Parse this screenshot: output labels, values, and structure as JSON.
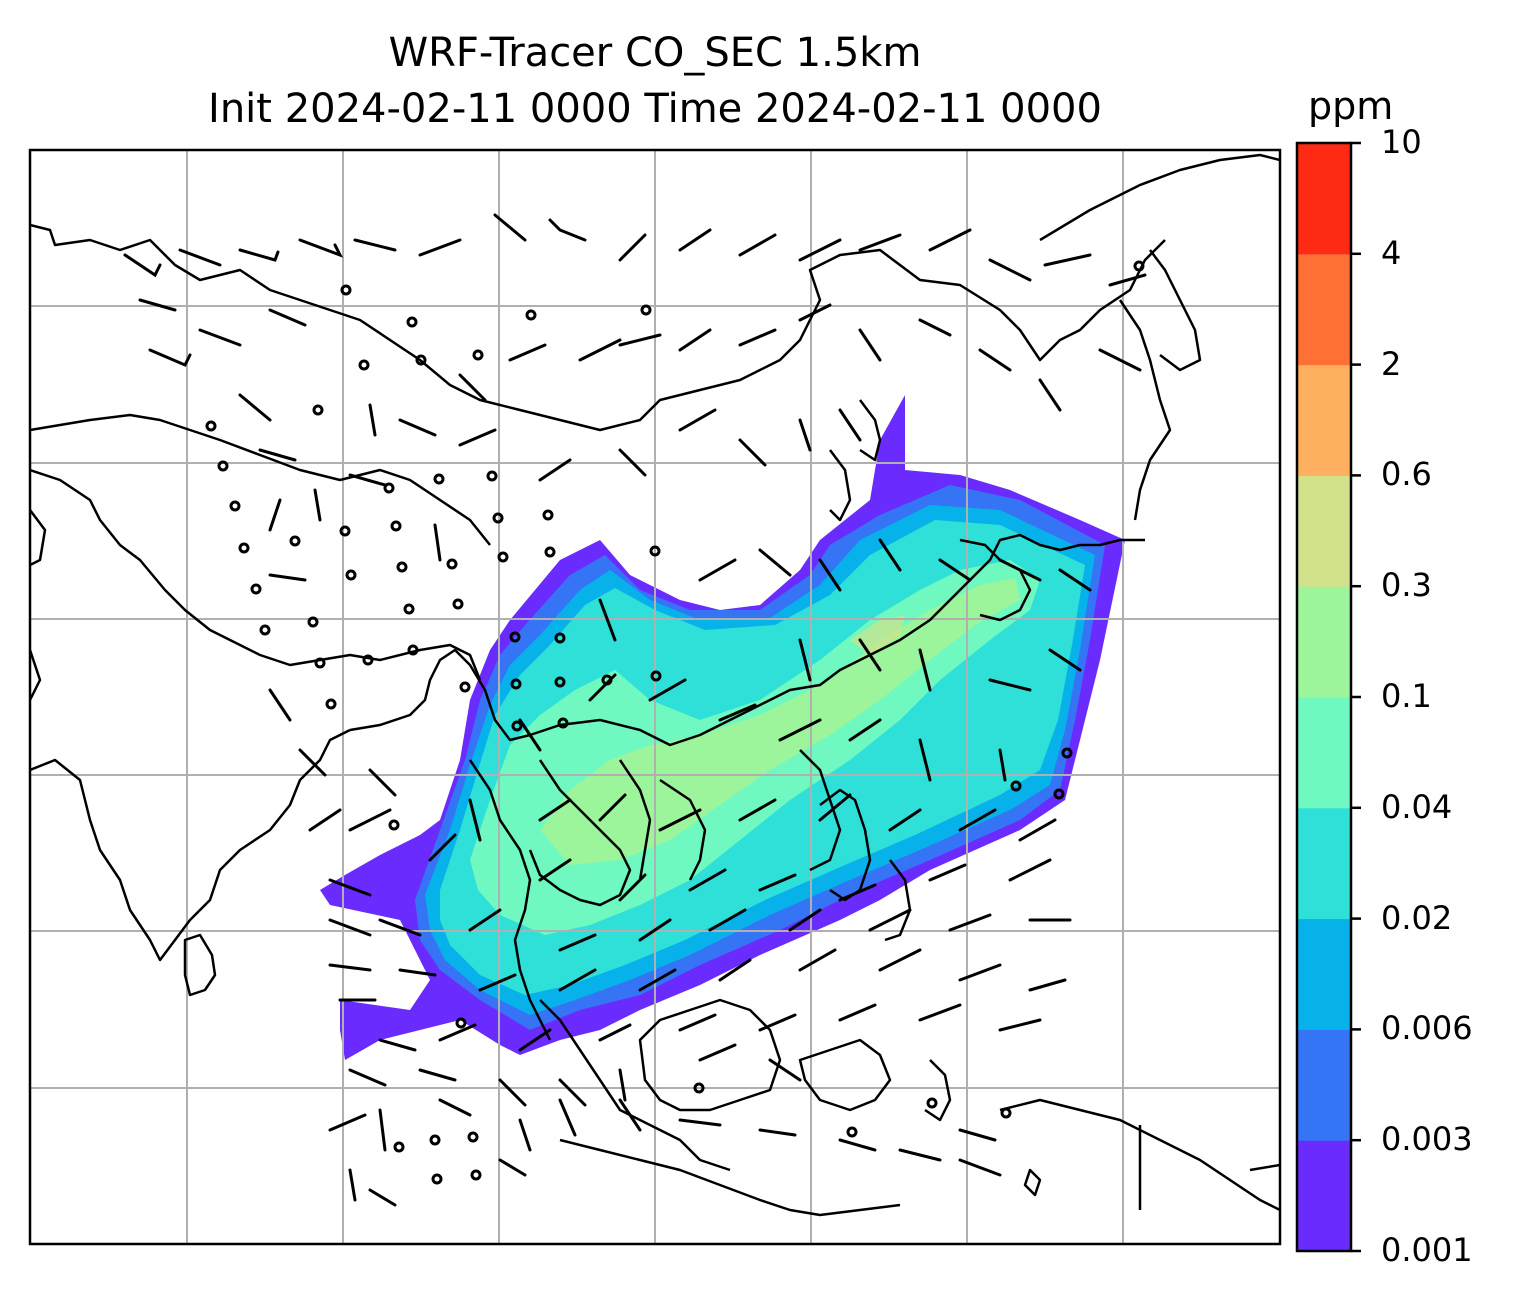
{
  "title": {
    "line1": "WRF-Tracer CO_SEC 1.5km",
    "line2": "Init 2024-02-11 0000 Time 2024-02-11 0000"
  },
  "colorbar": {
    "units": "ppm",
    "levels": [
      "0.001",
      "0.003",
      "0.006",
      "0.02",
      "0.04",
      "0.1",
      "0.3",
      "0.6",
      "2",
      "4",
      "10"
    ],
    "colors": [
      "#6a2bff",
      "#3575f5",
      "#07b2ea",
      "#2fe0d8",
      "#6ff9c0",
      "#9cf59a",
      "#d1e28a",
      "#ffaf60",
      "#ff7037",
      "#ff2a14"
    ]
  },
  "map": {
    "grid": true,
    "coastline_color": "#000000",
    "grid_color": "#b0b0b0"
  }
}
